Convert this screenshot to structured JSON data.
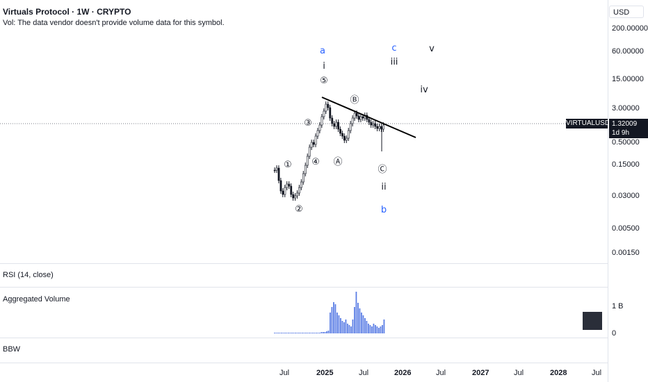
{
  "header": {
    "title": "Virtuals Protocol · 1W · CRYPTO",
    "volume_note": "Vol: The data vendor doesn't provide volume data for this symbol."
  },
  "price_scale": {
    "currency_button": "USD",
    "ticks": [
      "200.00000",
      "60.00000",
      "15.00000",
      "3.00000",
      "0.50000",
      "0.15000",
      "0.03000",
      "0.00500",
      "0.00150"
    ]
  },
  "symbol_badge": {
    "symbol": "VIRTUALUSD",
    "price": "1.32009",
    "countdown": "1d 9h"
  },
  "panes": {
    "rsi_label": "RSI (14, close)",
    "aggregated_volume_label": "Aggregated Volume",
    "bbw_label": "BBW",
    "volume_ticks": [
      "1 B",
      "0"
    ]
  },
  "time_axis": {
    "labels": [
      {
        "text": "Jul",
        "bold": false
      },
      {
        "text": "2025",
        "bold": true
      },
      {
        "text": "Jul",
        "bold": false
      },
      {
        "text": "2026",
        "bold": true
      },
      {
        "text": "Jul",
        "bold": false
      },
      {
        "text": "2027",
        "bold": true
      },
      {
        "text": "Jul",
        "bold": false
      },
      {
        "text": "2028",
        "bold": true
      },
      {
        "text": "Jul",
        "bold": false
      }
    ]
  },
  "wave_labels": {
    "a": "a",
    "c": "c",
    "v": "v",
    "i": "i",
    "iii": "iii",
    "iv": "iv",
    "ii": "ii",
    "b": "b",
    "five": "⑤",
    "B": "Ⓑ",
    "three": "③",
    "four": "④",
    "A": "Ⓐ",
    "one": "①",
    "C": "Ⓒ",
    "two": "②"
  },
  "colors": {
    "accent_blue": "#2962ff",
    "volume_bar": "#5b7ee5",
    "candle": "#131722"
  }
}
